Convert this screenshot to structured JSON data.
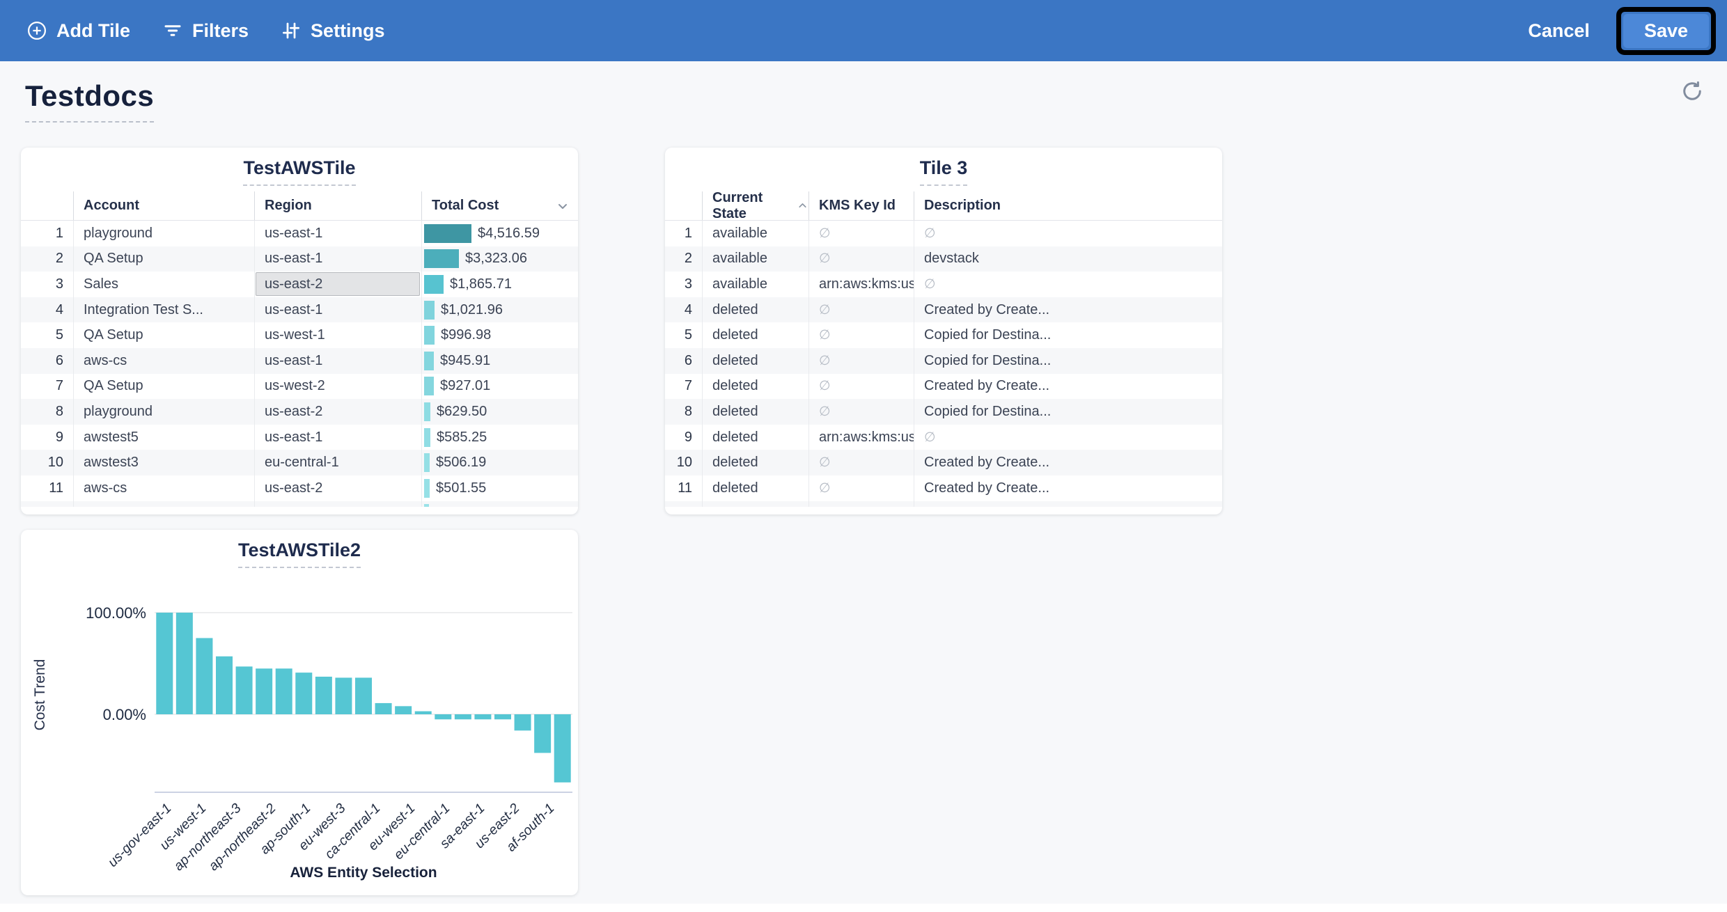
{
  "toolbar": {
    "add_tile_label": "Add Tile",
    "filters_label": "Filters",
    "settings_label": "Settings",
    "cancel_label": "Cancel",
    "save_label": "Save",
    "bg_color": "#3b76c4",
    "save_bg_color": "#4c88d8",
    "save_highlight_border_color": "#000000"
  },
  "page": {
    "title": "Testdocs",
    "bg_color": "#f7f8fa"
  },
  "tiles": {
    "tile1": {
      "title": "TestAWSTile",
      "columns": [
        "Account",
        "Region",
        "Total Cost"
      ],
      "total_cost_sort_icon": "chevron-down",
      "max_value": 4516.59,
      "selected_cell": {
        "row_index": 2,
        "column": "Region"
      },
      "rows": [
        {
          "num": "1",
          "account": "playground",
          "region": "us-east-1",
          "cost": "$4,516.59",
          "value": 4516.59,
          "bar_color": "#3e96a3"
        },
        {
          "num": "2",
          "account": "QA Setup",
          "region": "us-east-1",
          "cost": "$3,323.06",
          "value": 3323.06,
          "bar_color": "#4caebb"
        },
        {
          "num": "3",
          "account": "Sales",
          "region": "us-east-2",
          "cost": "$1,865.71",
          "value": 1865.71,
          "bar_color": "#57c3d0"
        },
        {
          "num": "4",
          "account": "Integration Test S...",
          "region": "us-east-1",
          "cost": "$1,021.96",
          "value": 1021.96,
          "bar_color": "#7fd3dc"
        },
        {
          "num": "5",
          "account": "QA Setup",
          "region": "us-west-1",
          "cost": "$996.98",
          "value": 996.98,
          "bar_color": "#81d5de"
        },
        {
          "num": "6",
          "account": "aws-cs",
          "region": "us-east-1",
          "cost": "$945.91",
          "value": 945.91,
          "bar_color": "#83d6de"
        },
        {
          "num": "7",
          "account": "QA Setup",
          "region": "us-west-2",
          "cost": "$927.01",
          "value": 927.01,
          "bar_color": "#84d6de"
        },
        {
          "num": "8",
          "account": "playground",
          "region": "us-east-2",
          "cost": "$629.50",
          "value": 629.5,
          "bar_color": "#8edce3"
        },
        {
          "num": "9",
          "account": "awstest5",
          "region": "us-east-1",
          "cost": "$585.25",
          "value": 585.25,
          "bar_color": "#90dde4"
        },
        {
          "num": "10",
          "account": "awstest3",
          "region": "eu-central-1",
          "cost": "$506.19",
          "value": 506.19,
          "bar_color": "#94dfe5"
        },
        {
          "num": "11",
          "account": "aws-cs",
          "region": "us-east-2",
          "cost": "$501.55",
          "value": 501.55,
          "bar_color": "#96e0e6"
        }
      ],
      "partial_row": {
        "bar_color": "#9ae2e8",
        "value": 480
      }
    },
    "tile3": {
      "title": "Tile 3",
      "columns": [
        "Current State",
        "KMS Key Id",
        "Description"
      ],
      "current_state_sort_icon": "chevron-up",
      "null_symbol": "∅",
      "rows": [
        {
          "num": "1",
          "state": "available",
          "kms": null,
          "description": null
        },
        {
          "num": "2",
          "state": "available",
          "kms": null,
          "description": "devstack"
        },
        {
          "num": "3",
          "state": "available",
          "kms": "arn:aws:kms:us-e...",
          "description": null
        },
        {
          "num": "4",
          "state": "deleted",
          "kms": null,
          "description": "Created by Create..."
        },
        {
          "num": "5",
          "state": "deleted",
          "kms": null,
          "description": "Copied for Destina..."
        },
        {
          "num": "6",
          "state": "deleted",
          "kms": null,
          "description": "Copied for Destina..."
        },
        {
          "num": "7",
          "state": "deleted",
          "kms": null,
          "description": "Created by Create..."
        },
        {
          "num": "8",
          "state": "deleted",
          "kms": null,
          "description": "Copied for Destina..."
        },
        {
          "num": "9",
          "state": "deleted",
          "kms": "arn:aws:kms:us-w...",
          "description": null
        },
        {
          "num": "10",
          "state": "deleted",
          "kms": null,
          "description": "Created by Create..."
        },
        {
          "num": "11",
          "state": "deleted",
          "kms": null,
          "description": "Created by Create..."
        }
      ]
    }
  },
  "chart_data": {
    "type": "bar",
    "title": "TestAWSTile2",
    "ylabel": "Cost Trend",
    "xlabel": "AWS Entity Selection",
    "ytick_labels": [
      "100.00%",
      "0.00%"
    ],
    "ylim": [
      -80,
      115
    ],
    "grid": "horizontal",
    "bar_color": "#55c6d3",
    "values": [
      100,
      100,
      75,
      57,
      47,
      45,
      45,
      41,
      37,
      36,
      36,
      11,
      8,
      3,
      -5,
      -5,
      -5,
      -5,
      -16,
      -38,
      -67
    ],
    "x_tick_labels": [
      "us-gov-east-1",
      "us-west-1",
      "ap-northeast-3",
      "ap-northeast-2",
      "ap-south-1",
      "eu-west-3",
      "ca-central-1",
      "eu-west-1",
      "eu-central-1",
      "sa-east-1",
      "us-east-2",
      "af-south-1"
    ]
  }
}
